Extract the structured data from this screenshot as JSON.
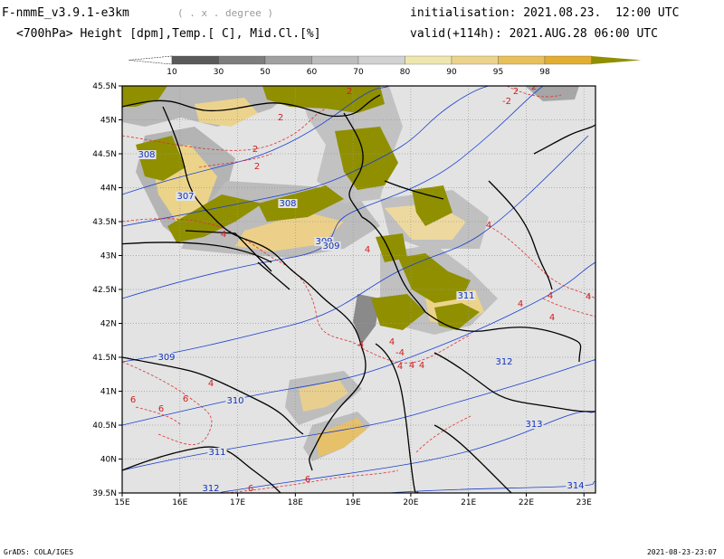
{
  "header": {
    "model": "F-nmmE_v3.9.1-e3km",
    "projection": "( . x . degree )",
    "fields": "<700hPa> Height [dpm],Temp.[ C], Mid.Cl.[%]",
    "init": "initialisation: 2021.08.23.  12:00 UTC",
    "valid": "valid(+114h): 2021.AUG.28 06:00 UTC"
  },
  "colorbar": {
    "levels": [
      "10",
      "30",
      "50",
      "60",
      "70",
      "80",
      "90",
      "95",
      "98"
    ],
    "colors": [
      "#5a5a5a",
      "#7d7d7d",
      "#a0a0a0",
      "#bdbdbd",
      "#d2d2d2",
      "#efe6ad",
      "#ebd48a",
      "#e8c05a",
      "#e3ad2f",
      "#8f8f00"
    ]
  },
  "axes": {
    "lon_ticks": [
      "15E",
      "16E",
      "17E",
      "18E",
      "19E",
      "20E",
      "21E",
      "22E",
      "23E"
    ],
    "lat_ticks": [
      "45.5N",
      "45N",
      "44.5N",
      "44N",
      "43.5N",
      "43N",
      "42.5N",
      "42N",
      "41.5N",
      "41N",
      "40.5N",
      "40N",
      "39.5N"
    ]
  },
  "contours": {
    "height": [
      "308",
      "307",
      "308",
      "309",
      "309",
      "311",
      "309",
      "310",
      "312",
      "311",
      "313",
      "312",
      "314"
    ],
    "temp": [
      "2",
      "2",
      "2",
      "2",
      "2",
      "2",
      "-2",
      "4",
      "4",
      "4",
      "4",
      "4",
      "4",
      "4",
      "4",
      "4",
      "4",
      "-4",
      "4",
      "4",
      "4",
      "6",
      "6",
      "6",
      "6",
      "6"
    ]
  },
  "footer": {
    "credit": "GrADS: COLA/IGES",
    "timestamp": "2021-08-23-23:07"
  },
  "colors": {
    "background": "#e3e3e3",
    "olive": "#8f8f00",
    "height_contour": "#1a3fd0",
    "temp_contour": "#e03030"
  }
}
